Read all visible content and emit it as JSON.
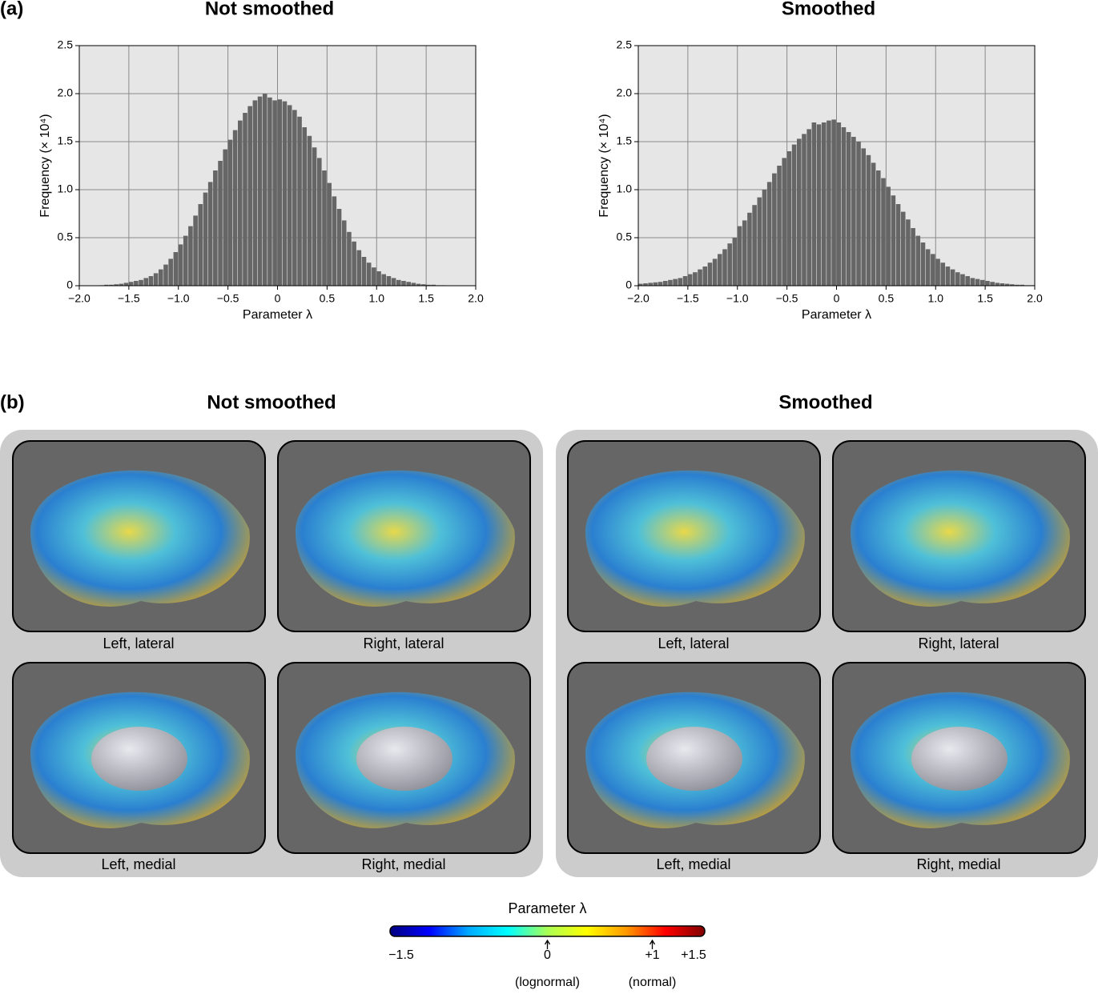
{
  "panel_a_label": "(a)",
  "chart_data": [
    {
      "type": "histogram",
      "title": "Not smoothed",
      "x_label": "Parameter λ",
      "y_label": "Frequency (× 10⁴)",
      "color": "#666666",
      "background": "#e6e6e6",
      "grid": true,
      "bins": [
        -2,
        -1.95,
        -1.9,
        -1.85,
        -1.8,
        -1.75,
        -1.7,
        -1.65,
        -1.6,
        -1.55,
        -1.5,
        -1.45,
        -1.4,
        -1.35,
        -1.3,
        -1.25,
        -1.2,
        -1.15,
        -1.1,
        -1.05,
        -1,
        -0.95,
        -0.9,
        -0.85,
        -0.8,
        -0.75,
        -0.7,
        -0.65,
        -0.6,
        -0.55,
        -0.5,
        -0.45,
        -0.4,
        -0.35,
        -0.3,
        -0.25,
        -0.2,
        -0.15,
        -0.1,
        -0.05,
        0,
        0.05,
        0.1,
        0.15,
        0.2,
        0.25,
        0.3,
        0.35,
        0.4,
        0.45,
        0.5,
        0.55,
        0.6,
        0.65,
        0.7,
        0.75,
        0.8,
        0.85,
        0.9,
        0.95,
        1,
        1.05,
        1.1,
        1.15,
        1.2,
        1.25,
        1.3,
        1.35,
        1.4,
        1.45,
        1.5,
        1.55,
        1.6,
        1.65,
        1.7,
        1.75,
        1.8,
        1.85,
        1.9,
        1.95,
        2
      ],
      "values": [
        0,
        0,
        0,
        0,
        0.005,
        0.01,
        0.01,
        0.015,
        0.02,
        0.03,
        0.04,
        0.05,
        0.06,
        0.08,
        0.1,
        0.13,
        0.17,
        0.22,
        0.28,
        0.35,
        0.43,
        0.52,
        0.62,
        0.73,
        0.85,
        0.97,
        1.08,
        1.2,
        1.3,
        1.42,
        1.52,
        1.62,
        1.72,
        1.8,
        1.87,
        1.93,
        1.97,
        2.0,
        1.96,
        1.93,
        1.94,
        1.92,
        1.88,
        1.83,
        1.76,
        1.65,
        1.56,
        1.44,
        1.33,
        1.2,
        1.07,
        0.93,
        0.8,
        0.68,
        0.56,
        0.46,
        0.37,
        0.3,
        0.24,
        0.19,
        0.15,
        0.12,
        0.1,
        0.08,
        0.06,
        0.05,
        0.04,
        0.03,
        0.02,
        0.015,
        0.01,
        0.01,
        0.005,
        0.005,
        0,
        0,
        0,
        0,
        0,
        0
      ],
      "xlim": [
        -2,
        2
      ],
      "ylim": [
        0,
        2.5
      ],
      "xticks": [
        {
          "value": -2,
          "label": "−2.0"
        },
        {
          "value": -1.5,
          "label": "−1.5"
        },
        {
          "value": -1,
          "label": "−1.0"
        },
        {
          "value": -0.5,
          "label": "−0.5"
        },
        0,
        0.5,
        {
          "value": 1,
          "label": "1.0"
        },
        1.5,
        {
          "value": 2,
          "label": "2.0"
        }
      ],
      "yticks": [
        0,
        0.5,
        {
          "value": 1,
          "label": "1.0"
        },
        1.5,
        {
          "value": 2,
          "label": "2.0"
        },
        2.5
      ]
    },
    {
      "type": "histogram",
      "title": "Smoothed",
      "x_label": "Parameter λ",
      "y_label": "Frequency (× 10⁴)",
      "color": "#666666",
      "background": "#e6e6e6",
      "grid": true,
      "bins": [
        -2,
        -1.95,
        -1.9,
        -1.85,
        -1.8,
        -1.75,
        -1.7,
        -1.65,
        -1.6,
        -1.55,
        -1.5,
        -1.45,
        -1.4,
        -1.35,
        -1.3,
        -1.25,
        -1.2,
        -1.15,
        -1.1,
        -1.05,
        -1,
        -0.95,
        -0.9,
        -0.85,
        -0.8,
        -0.75,
        -0.7,
        -0.65,
        -0.6,
        -0.55,
        -0.5,
        -0.45,
        -0.4,
        -0.35,
        -0.3,
        -0.25,
        -0.2,
        -0.15,
        -0.1,
        -0.05,
        0,
        0.05,
        0.1,
        0.15,
        0.2,
        0.25,
        0.3,
        0.35,
        0.4,
        0.45,
        0.5,
        0.55,
        0.6,
        0.65,
        0.7,
        0.75,
        0.8,
        0.85,
        0.9,
        0.95,
        1,
        1.05,
        1.1,
        1.15,
        1.2,
        1.25,
        1.3,
        1.35,
        1.4,
        1.45,
        1.5,
        1.55,
        1.6,
        1.65,
        1.7,
        1.75,
        1.8,
        1.85,
        1.9,
        1.95,
        2
      ],
      "values": [
        0.02,
        0.025,
        0.03,
        0.035,
        0.04,
        0.05,
        0.06,
        0.07,
        0.08,
        0.1,
        0.12,
        0.14,
        0.17,
        0.2,
        0.24,
        0.28,
        0.33,
        0.38,
        0.44,
        0.5,
        0.62,
        0.68,
        0.76,
        0.84,
        0.92,
        1.0,
        1.08,
        1.17,
        1.25,
        1.33,
        1.4,
        1.47,
        1.53,
        1.58,
        1.63,
        1.7,
        1.68,
        1.7,
        1.72,
        1.73,
        1.7,
        1.65,
        1.6,
        1.55,
        1.5,
        1.43,
        1.36,
        1.28,
        1.2,
        1.12,
        1.03,
        0.94,
        0.85,
        0.77,
        0.69,
        0.6,
        0.52,
        0.45,
        0.38,
        0.33,
        0.28,
        0.24,
        0.2,
        0.17,
        0.14,
        0.12,
        0.1,
        0.08,
        0.07,
        0.06,
        0.05,
        0.04,
        0.03,
        0.025,
        0.02,
        0.015,
        0.01,
        0.01,
        0.005,
        0.005
      ],
      "xlim": [
        -2,
        2
      ],
      "ylim": [
        0,
        2.5
      ],
      "xticks": [
        {
          "value": -2,
          "label": "−2.0"
        },
        {
          "value": -1.5,
          "label": "−1.5"
        },
        {
          "value": -1,
          "label": "−1.0"
        },
        {
          "value": -0.5,
          "label": "−0.5"
        },
        0,
        0.5,
        {
          "value": 1,
          "label": "1.0"
        },
        1.5,
        {
          "value": 2,
          "label": "2.0"
        }
      ],
      "yticks": [
        0,
        0.5,
        {
          "value": 1,
          "label": "1.0"
        },
        1.5,
        {
          "value": 2,
          "label": "2.0"
        },
        2.5
      ]
    }
  ],
  "panel_b": {
    "label": "(b)",
    "groups": [
      {
        "title": "Not smoothed",
        "captions": [
          "Left, lateral",
          "Right, lateral",
          "Left, medial",
          "Right, medial"
        ]
      },
      {
        "title": "Smoothed",
        "captions": [
          "Left, lateral",
          "Right, lateral",
          "Left, medial",
          "Right, medial"
        ]
      }
    ]
  },
  "colorbar": {
    "title": "Parameter λ",
    "lim": [
      -1.5,
      1.5
    ],
    "colors": [
      "#00007f",
      "#0000ff",
      "#00aaff",
      "#00ffff",
      "#aaff55",
      "#ffff00",
      "#ff9900",
      "#ff0000",
      "#7f0000"
    ],
    "ticks": [
      {
        "value": -1.5,
        "label": "−1.5"
      },
      0,
      {
        "value": 1,
        "label": "+1"
      },
      {
        "value": 1.5,
        "label": "+1.5"
      }
    ],
    "arrows": [
      0,
      1
    ],
    "notes": [
      {
        "value": 0,
        "label": "(lognormal)"
      },
      {
        "value": 1,
        "label": "(normal)"
      }
    ]
  }
}
